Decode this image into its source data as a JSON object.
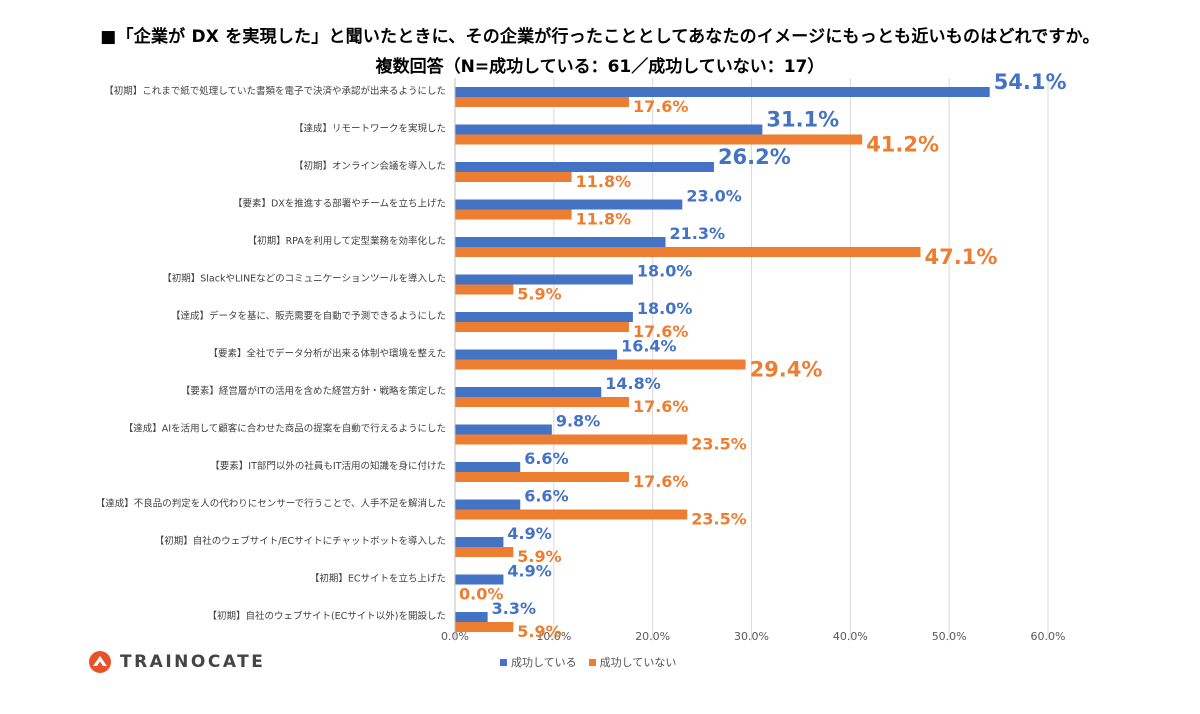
{
  "title_line1": "■「企業が DX を実現した」と聞いたときに、その企業が行ったこととしてあなたのイメージにもっとも近いものはどれですか。",
  "title_line2": "複数回答（N=成功している：61／成功していない：17）",
  "brand": "TRAINOCATE",
  "colors": {
    "series1": "#4472C4",
    "series2": "#ED7D31",
    "brand": "#E8512A"
  },
  "chart_data": {
    "type": "bar",
    "orientation": "horizontal",
    "categories": [
      "【初期】これまで紙で処理していた書類を電子で決済や承認が出来るようにした",
      "【達成】リモートワークを実現した",
      "【初期】オンライン会議を導入した",
      "【要素】DXを推進する部署やチームを立ち上げた",
      "【初期】RPAを利用して定型業務を効率化した",
      "【初期】SlackやLINEなどのコミュニケーションツールを導入した",
      "【達成】データを基に、販売需要を自動で予測できるようにした",
      "【要素】全社でデータ分析が出来る体制や環境を整えた",
      "【要素】経営層がITの活用を含めた経営方針・戦略を策定した",
      "【達成】AIを活用して顧客に合わせた商品の提案を自動で行えるようにした",
      "【要素】IT部門以外の社員もIT活用の知識を身に付けた",
      "【達成】不良品の判定を人の代わりにセンサーで行うことで、人手不足を解消した",
      "【初期】自社のウェブサイト/ECサイトにチャットボットを導入した",
      "【初期】ECサイトを立ち上げた",
      "【初期】自社のウェブサイト(ECサイト以外)を開設した"
    ],
    "series": [
      {
        "name": "成功している",
        "values": [
          54.1,
          31.1,
          26.2,
          23.0,
          21.3,
          18.0,
          18.0,
          16.4,
          14.8,
          9.8,
          6.6,
          6.6,
          4.9,
          4.9,
          3.3
        ]
      },
      {
        "name": "成功していない",
        "values": [
          17.6,
          41.2,
          11.8,
          11.8,
          47.1,
          5.9,
          17.6,
          29.4,
          17.6,
          23.5,
          17.6,
          23.5,
          5.9,
          0.0,
          5.9
        ]
      }
    ],
    "x_ticks": [
      "0.0%",
      "10.0%",
      "20.0%",
      "30.0%",
      "40.0%",
      "50.0%",
      "60.0%"
    ],
    "xlim": [
      0,
      60
    ],
    "grid": "vertical",
    "legend_position": "bottom",
    "data_label_large": [
      [
        true,
        true,
        true,
        false,
        false,
        false,
        false,
        false,
        false,
        false,
        false,
        false,
        false,
        false,
        false
      ],
      [
        false,
        true,
        false,
        false,
        true,
        false,
        false,
        true,
        false,
        false,
        false,
        false,
        false,
        false,
        false
      ]
    ]
  }
}
